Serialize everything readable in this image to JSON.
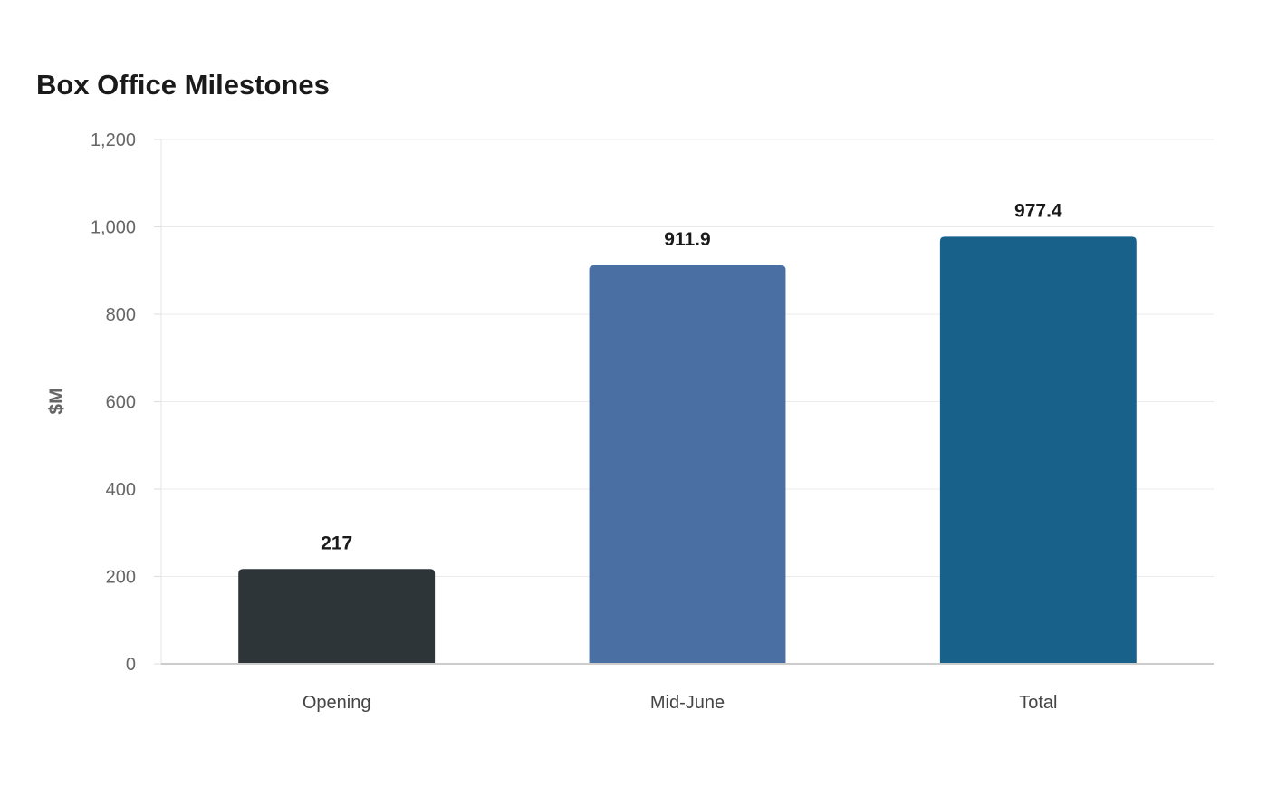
{
  "chart_data": {
    "type": "bar",
    "title": "Box Office Milestones",
    "xlabel": "",
    "ylabel": "$M",
    "ylim": [
      0,
      1200
    ],
    "yticks": [
      0,
      200,
      400,
      600,
      800,
      1000,
      1200
    ],
    "ytick_labels": [
      "0",
      "200",
      "400",
      "600",
      "800",
      "1,000",
      "1,200"
    ],
    "categories": [
      "Opening",
      "Mid-June",
      "Total"
    ],
    "values": [
      217,
      911.9,
      977.4
    ],
    "value_labels": [
      "217",
      "911.9",
      "977.4"
    ],
    "colors": [
      "#2e3538",
      "#4a6fa3",
      "#18618a"
    ],
    "grid": true,
    "legend": "none"
  }
}
